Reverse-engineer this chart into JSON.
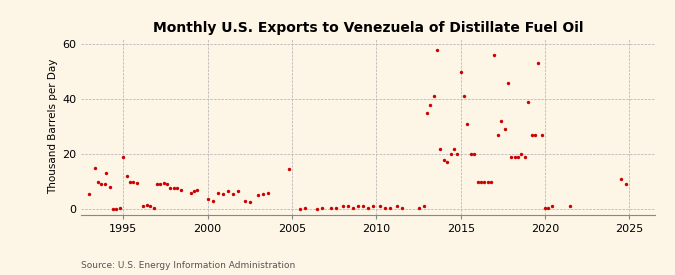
{
  "title": "Monthly U.S. Exports to Venezuela of Distillate Fuel Oil",
  "ylabel": "Thousand Barrels per Day",
  "source": "Source: U.S. Energy Information Administration",
  "background_color": "#fdf5e6",
  "dot_color": "#cc0000",
  "xlim": [
    1992.5,
    2026.5
  ],
  "ylim": [
    -2,
    62
  ],
  "yticks": [
    0,
    20,
    40,
    60
  ],
  "xticks": [
    1995,
    2000,
    2005,
    2010,
    2015,
    2020,
    2025
  ],
  "title_fontsize": 10,
  "label_fontsize": 7.5,
  "tick_fontsize": 8,
  "source_fontsize": 6.5,
  "dot_size": 6,
  "data": [
    [
      1993.0,
      5.5
    ],
    [
      1993.3,
      15.0
    ],
    [
      1993.5,
      10.0
    ],
    [
      1993.7,
      9.0
    ],
    [
      1993.9,
      9.0
    ],
    [
      1994.0,
      13.0
    ],
    [
      1994.2,
      8.0
    ],
    [
      1994.4,
      0.0
    ],
    [
      1994.6,
      0.0
    ],
    [
      1994.8,
      0.5
    ],
    [
      1995.0,
      19.0
    ],
    [
      1995.2,
      12.0
    ],
    [
      1995.4,
      10.0
    ],
    [
      1995.6,
      10.0
    ],
    [
      1995.8,
      9.5
    ],
    [
      1996.2,
      1.0
    ],
    [
      1996.4,
      1.5
    ],
    [
      1996.6,
      1.0
    ],
    [
      1996.8,
      0.5
    ],
    [
      1997.0,
      9.0
    ],
    [
      1997.2,
      9.0
    ],
    [
      1997.4,
      9.5
    ],
    [
      1997.6,
      9.0
    ],
    [
      1997.8,
      7.5
    ],
    [
      1998.0,
      7.5
    ],
    [
      1998.2,
      7.5
    ],
    [
      1998.4,
      7.0
    ],
    [
      1999.0,
      6.0
    ],
    [
      1999.2,
      6.5
    ],
    [
      1999.4,
      7.0
    ],
    [
      2000.0,
      3.5
    ],
    [
      2000.3,
      3.0
    ],
    [
      2000.6,
      6.0
    ],
    [
      2000.9,
      5.5
    ],
    [
      2001.2,
      6.5
    ],
    [
      2001.5,
      5.5
    ],
    [
      2001.8,
      6.5
    ],
    [
      2002.2,
      3.0
    ],
    [
      2002.5,
      2.5
    ],
    [
      2003.0,
      5.0
    ],
    [
      2003.3,
      5.5
    ],
    [
      2003.6,
      6.0
    ],
    [
      2004.8,
      14.5
    ],
    [
      2005.5,
      0.0
    ],
    [
      2005.8,
      0.5
    ],
    [
      2006.5,
      0.0
    ],
    [
      2006.8,
      0.5
    ],
    [
      2007.3,
      0.5
    ],
    [
      2007.6,
      0.5
    ],
    [
      2008.0,
      1.0
    ],
    [
      2008.3,
      1.0
    ],
    [
      2008.6,
      0.5
    ],
    [
      2008.9,
      1.0
    ],
    [
      2009.2,
      1.0
    ],
    [
      2009.5,
      0.5
    ],
    [
      2009.8,
      1.0
    ],
    [
      2010.2,
      1.0
    ],
    [
      2010.5,
      0.5
    ],
    [
      2010.8,
      0.5
    ],
    [
      2011.2,
      1.0
    ],
    [
      2011.5,
      0.5
    ],
    [
      2012.5,
      0.5
    ],
    [
      2012.8,
      1.0
    ],
    [
      2013.0,
      35.0
    ],
    [
      2013.2,
      38.0
    ],
    [
      2013.4,
      41.0
    ],
    [
      2013.6,
      58.0
    ],
    [
      2013.8,
      22.0
    ],
    [
      2014.0,
      18.0
    ],
    [
      2014.2,
      17.0
    ],
    [
      2014.4,
      20.0
    ],
    [
      2014.6,
      22.0
    ],
    [
      2014.8,
      20.0
    ],
    [
      2015.0,
      50.0
    ],
    [
      2015.2,
      41.0
    ],
    [
      2015.4,
      31.0
    ],
    [
      2015.6,
      20.0
    ],
    [
      2015.8,
      20.0
    ],
    [
      2016.0,
      10.0
    ],
    [
      2016.2,
      10.0
    ],
    [
      2016.4,
      10.0
    ],
    [
      2016.6,
      10.0
    ],
    [
      2016.8,
      10.0
    ],
    [
      2017.0,
      56.0
    ],
    [
      2017.2,
      27.0
    ],
    [
      2017.4,
      32.0
    ],
    [
      2017.6,
      29.0
    ],
    [
      2017.8,
      46.0
    ],
    [
      2018.0,
      19.0
    ],
    [
      2018.2,
      19.0
    ],
    [
      2018.4,
      19.0
    ],
    [
      2018.6,
      20.0
    ],
    [
      2018.8,
      19.0
    ],
    [
      2019.0,
      39.0
    ],
    [
      2019.2,
      27.0
    ],
    [
      2019.4,
      27.0
    ],
    [
      2019.6,
      53.0
    ],
    [
      2019.8,
      27.0
    ],
    [
      2020.0,
      0.5
    ],
    [
      2020.2,
      0.5
    ],
    [
      2020.4,
      1.0
    ],
    [
      2021.5,
      1.0
    ],
    [
      2024.5,
      11.0
    ],
    [
      2024.8,
      9.0
    ]
  ]
}
